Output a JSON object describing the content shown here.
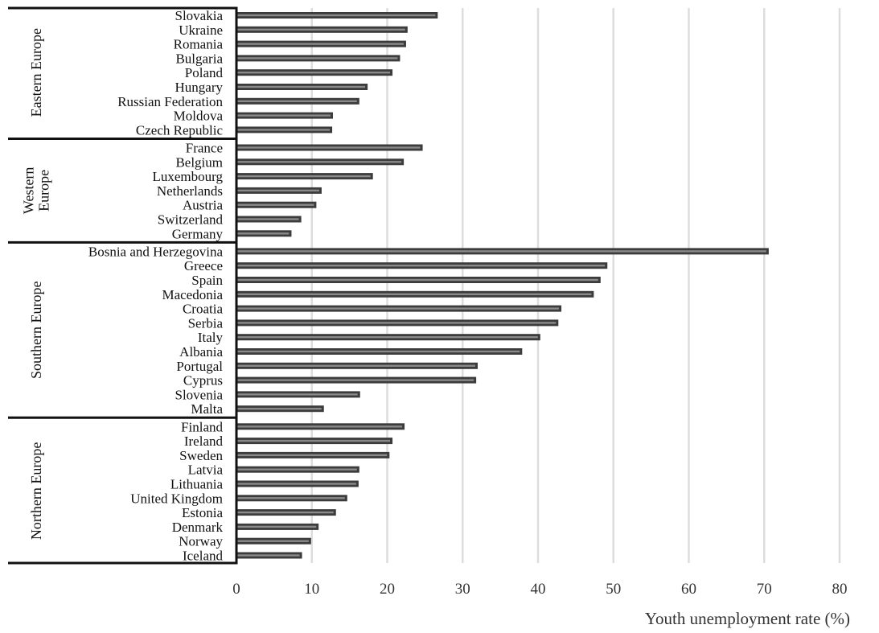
{
  "chart_data": {
    "type": "bar",
    "orientation": "horizontal",
    "title": "",
    "xlabel": "Youth unemployment rate (%)",
    "ylabel": "",
    "xlim": [
      0,
      80
    ],
    "xticks": [
      "0",
      "10",
      "20",
      "30",
      "40",
      "50",
      "60",
      "70",
      "80"
    ],
    "grid": true,
    "groups": [
      {
        "name": "Eastern Europe",
        "label_lines": [
          "Eastern Europe"
        ],
        "categories": [
          "Slovakia",
          "Ukraine",
          "Romania",
          "Bulgaria",
          "Poland",
          "Hungary",
          "Russian Federation",
          "Moldova",
          "Czech Republic"
        ],
        "values": [
          26.7,
          22.7,
          22.5,
          21.7,
          20.7,
          17.4,
          16.3,
          12.8,
          12.7
        ]
      },
      {
        "name": "Western Europe",
        "label_lines": [
          "Western",
          "Europe"
        ],
        "categories": [
          "France",
          "Belgium",
          "Luxembourg",
          "Netherlands",
          "Austria",
          "Switzerland",
          "Germany"
        ],
        "values": [
          24.7,
          22.2,
          18.1,
          11.3,
          10.6,
          8.6,
          7.3
        ]
      },
      {
        "name": "Southern Europe",
        "label_lines": [
          "Southern Europe"
        ],
        "categories": [
          "Bosnia and Herzegovina",
          "Greece",
          "Spain",
          "Macedonia",
          "Croatia",
          "Serbia",
          "Italy",
          "Albania",
          "Portugal",
          "Cyprus",
          "Slovenia",
          "Malta"
        ],
        "values": [
          70.6,
          49.2,
          48.3,
          47.4,
          43.1,
          42.7,
          40.3,
          37.9,
          32.0,
          31.8,
          16.4,
          11.6
        ]
      },
      {
        "name": "Northern Europe",
        "label_lines": [
          "Northern Europe"
        ],
        "categories": [
          "Finland",
          "Ireland",
          "Sweden",
          "Latvia",
          "Lithuania",
          "United Kingdom",
          "Estonia",
          "Denmark",
          "Norway",
          "Iceland"
        ],
        "values": [
          22.3,
          20.7,
          20.3,
          16.3,
          16.2,
          14.7,
          13.2,
          10.9,
          9.9,
          8.7
        ]
      }
    ],
    "colors": {
      "bar_border": "#3c3c3c",
      "bar_fill": "#8a8a8a",
      "grid": "#dddddd",
      "axis": "#111111"
    }
  }
}
